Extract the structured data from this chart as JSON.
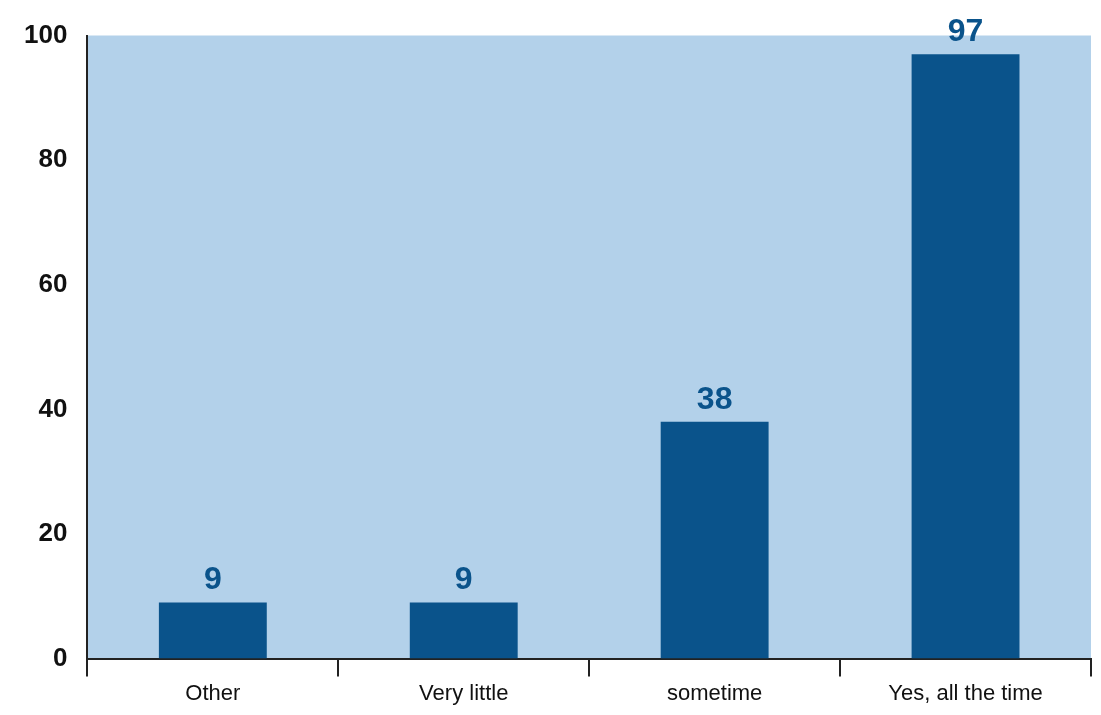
{
  "chart_data": {
    "type": "bar",
    "categories": [
      "Other",
      "Very little",
      "sometime",
      "Yes, all the time"
    ],
    "values": [
      9,
      9,
      38,
      97
    ],
    "color": "#0a538b",
    "ylim": [
      0,
      100
    ],
    "yticks": [
      0,
      20,
      40,
      60,
      80,
      100
    ],
    "data_labels": true
  }
}
